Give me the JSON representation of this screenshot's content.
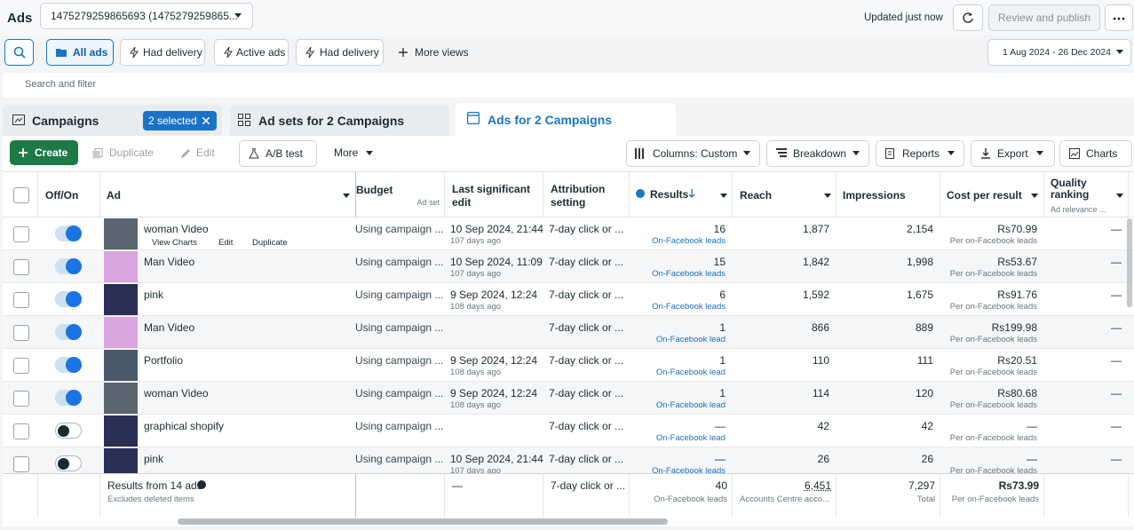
{
  "header": {
    "title": "Ads",
    "account": "1475279259865693 (1475279259865...",
    "status": "Updated just now",
    "publish": "Review and publish"
  },
  "views": {
    "all_ads": "All ads",
    "had_delivery_1": "Had delivery",
    "active_ads": "Active ads",
    "had_delivery_2": "Had delivery",
    "more_views": "More views",
    "date_range": "1 Aug 2024 - 26 Dec 2024"
  },
  "search": {
    "placeholder": "Search and filter"
  },
  "tabs": {
    "campaigns": "Campaigns",
    "selected": "2 selected",
    "ad_sets": "Ad sets for 2 Campaigns",
    "ads": "Ads for 2 Campaigns"
  },
  "toolbar": {
    "create": "Create",
    "duplicate": "Duplicate",
    "edit": "Edit",
    "ab_test": "A/B test",
    "more": "More",
    "columns": "Columns: Custom",
    "breakdown": "Breakdown",
    "reports": "Reports",
    "export": "Export",
    "charts": "Charts"
  },
  "table": {
    "headers": {
      "toggle": "Off/On",
      "ad": "Ad",
      "budget": "Budget",
      "budget_sub": "Ad set",
      "last_edit": "Last significant edit",
      "attribution": "Attribution setting",
      "results": "Results",
      "reach": "Reach",
      "impressions": "Impressions",
      "cost": "Cost per result",
      "quality": "Quality ranking",
      "quality_sub": "Ad relevance ..."
    },
    "rows": [
      {
        "on": true,
        "ad": "woman Video",
        "actions": [
          "View Charts",
          "Edit",
          "Duplicate"
        ],
        "budget": "Using campaign ...",
        "edit": "10 Sep 2024, 21:44",
        "edit_ago": "107 days ago",
        "attribution": "7-day click or ...",
        "results": "16",
        "results_label": "On-Facebook leads",
        "reach": "1,877",
        "impressions": "2,154",
        "cost": "Rs70.99",
        "cost_label": "Per on-Facebook leads",
        "quality": "—"
      },
      {
        "on": true,
        "ad": "Man Video",
        "budget": "Using campaign ...",
        "edit": "10 Sep 2024, 11:09",
        "edit_ago": "107 days ago",
        "attribution": "7-day click or ...",
        "results": "15",
        "results_label": "On-Facebook leads",
        "reach": "1,842",
        "impressions": "1,998",
        "cost": "Rs53.67",
        "cost_label": "Per on-Facebook leads",
        "quality": "—"
      },
      {
        "on": true,
        "ad": "pink",
        "budget": "Using campaign ...",
        "edit": "9 Sep 2024, 12:24",
        "edit_ago": "108 days ago",
        "attribution": "7-day click or ...",
        "results": "6",
        "results_label": "On-Facebook leads",
        "reach": "1,592",
        "impressions": "1,675",
        "cost": "Rs91.76",
        "cost_label": "Per on-Facebook leads",
        "quality": "—"
      },
      {
        "on": true,
        "ad": "Man Video",
        "budget": "Using campaign ...",
        "attribution": "7-day click or ...",
        "results": "1",
        "results_label": "On-Facebook lead",
        "reach": "866",
        "impressions": "889",
        "cost": "Rs199.98",
        "cost_label": "Per on-Facebook leads",
        "quality": "—"
      },
      {
        "on": true,
        "ad": "Portfolio",
        "budget": "Using campaign ...",
        "edit": "9 Sep 2024, 12:24",
        "edit_ago": "108 days ago",
        "attribution": "7-day click or ...",
        "results": "1",
        "results_label": "On-Facebook lead",
        "reach": "110",
        "impressions": "111",
        "cost": "Rs20.51",
        "cost_label": "Per on-Facebook leads",
        "quality": "—"
      },
      {
        "on": true,
        "ad": "woman Video",
        "budget": "Using campaign ...",
        "edit": "9 Sep 2024, 12:24",
        "edit_ago": "108 days ago",
        "attribution": "7-day click or ...",
        "results": "1",
        "results_label": "On-Facebook lead",
        "reach": "114",
        "impressions": "120",
        "cost": "Rs80.68",
        "cost_label": "Per on-Facebook leads",
        "quality": "—"
      },
      {
        "on": false,
        "ad": "graphical shopify",
        "budget": "Using campaign ...",
        "attribution": "7-day click or ...",
        "results": "—",
        "results_label": "On-Facebook lead",
        "reach": "42",
        "impressions": "42",
        "cost": "—",
        "cost_label": "Per on-Facebook leads",
        "quality": "—"
      },
      {
        "on": false,
        "ad": "pink",
        "budget": "Using campaign ...",
        "edit": "10 Sep 2024, 21:44",
        "edit_ago": "107 days ago",
        "attribution": "7-day click or ...",
        "results": "—",
        "results_label": "On-Facebook leads",
        "reach": "26",
        "impressions": "26",
        "cost": "—",
        "cost_label": "Per on-Facebook leads",
        "quality": "—"
      }
    ],
    "footer": {
      "summary": "Results from 14 ads",
      "note": "Excludes deleted items",
      "edit": "—",
      "attribution": "7-day click or ...",
      "results": "40",
      "results_label": "On-Facebook leads",
      "reach": "6,451",
      "reach_label": "Accounts Centre acco...",
      "impressions": "7,297",
      "impressions_label": "Total",
      "cost": "Rs73.99",
      "cost_label": "Per on-Facebook leads"
    }
  }
}
